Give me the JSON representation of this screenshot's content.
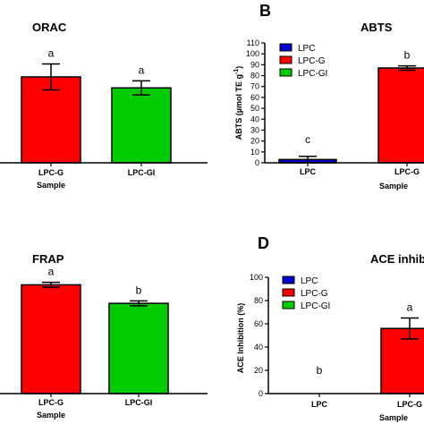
{
  "chart_data": [
    {
      "panel": "",
      "title": "ORAC",
      "type": "bar",
      "categories": [
        "LPC-G",
        "LPC-GI"
      ],
      "values": [
        86,
        75
      ],
      "errors": [
        13,
        7
      ],
      "letters": [
        "a",
        "a"
      ],
      "colors": [
        "#ff0000",
        "#00cc00"
      ],
      "xlabel": "Sample",
      "ylabel": "",
      "ylim": [
        0,
        120
      ]
    },
    {
      "panel": "B",
      "title": "ABTS",
      "type": "bar",
      "categories": [
        "LPC",
        "LPC-G"
      ],
      "values": [
        3,
        87
      ],
      "errors": [
        3,
        2
      ],
      "letters": [
        "c",
        "b"
      ],
      "colors": [
        "#0000cc",
        "#ff0000"
      ],
      "xlabel": "Sample",
      "ylabel": "ABTS (µmol TE g",
      "ylabel_sup": "-1",
      "ylabel_close": ")",
      "ylim": [
        0,
        110
      ],
      "yticks": [
        0,
        10,
        20,
        30,
        40,
        50,
        60,
        70,
        80,
        90,
        100,
        110
      ],
      "legend": [
        "LPC",
        "LPC-G",
        "LPC-GI"
      ],
      "legend_colors": [
        "#0000cc",
        "#ff0000",
        "#00cc00"
      ]
    },
    {
      "panel": "",
      "title": "FRAP",
      "type": "bar",
      "categories": [
        "LPC-G",
        "LPC-GI"
      ],
      "values": [
        88,
        73
      ],
      "errors": [
        2,
        2
      ],
      "letters": [
        "a",
        "b"
      ],
      "colors": [
        "#ff0000",
        "#00cc00"
      ],
      "xlabel": "Sample",
      "ylabel": "",
      "ylim": [
        0,
        110
      ]
    },
    {
      "panel": "D",
      "title": "ACE inhib",
      "type": "bar",
      "categories": [
        "LPC",
        "LPC-G"
      ],
      "values": [
        0,
        56
      ],
      "errors": [
        0,
        9
      ],
      "letters": [
        "b",
        "a"
      ],
      "colors": [
        "#0000cc",
        "#ff0000"
      ],
      "xlabel": "Sample",
      "ylabel": "ACE Inhibition (%)",
      "ylim": [
        0,
        100
      ],
      "yticks": [
        0,
        20,
        40,
        60,
        80,
        100
      ],
      "legend": [
        "LPC",
        "LPC-G",
        "LPC-GI"
      ],
      "legend_colors": [
        "#0000cc",
        "#ff0000",
        "#00cc00"
      ]
    }
  ]
}
